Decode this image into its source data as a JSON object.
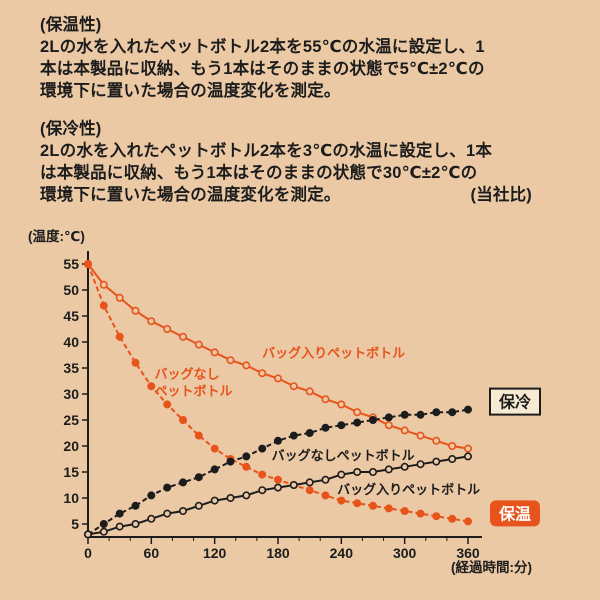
{
  "page": {
    "bg": "#ebc9a5",
    "accent": "#e8531b",
    "ink": "#1c1c1c",
    "box_fill": "#f7ead2"
  },
  "descriptions": {
    "hot": {
      "title": "(保温性)",
      "line1": "2Lの水を入れたペットボトル2本を55℃の水温に設定し、1",
      "line2": "本は本製品に収納、もう1本はそのままの状態で5℃±2℃の",
      "line3": "環境下に置いた場合の温度変化を測定。"
    },
    "cold": {
      "title": "(保冷性)",
      "line1": "2Lの水を入れたペットボトル2本を3℃の水温に設定し、1本",
      "line2": "は本製品に収納、もう1本はそのままの状態で30℃±2℃の",
      "line3": "環境下に置いた場合の温度変化を測定。",
      "note": "(当社比)"
    }
  },
  "chart_data": {
    "type": "line",
    "title": "",
    "ylabel": "(温度:℃)",
    "xlabel": "(経過時間:分)",
    "xlim": [
      0,
      372
    ],
    "ylim": [
      2.5,
      57
    ],
    "x_ticks": [
      0,
      60,
      120,
      180,
      240,
      300,
      360
    ],
    "x_minor_step": 20,
    "y_ticks": [
      5,
      10,
      15,
      20,
      25,
      30,
      35,
      40,
      45,
      50,
      55
    ],
    "x_step_minutes": 15,
    "grid": false,
    "legend": "inline-annotations",
    "series": [
      {
        "name": "保温・バッグ入りペットボトル",
        "color": "#e8531b",
        "dashed": false,
        "marker": "open",
        "values": [
          55,
          51,
          48.5,
          46,
          44,
          42.5,
          41,
          39.5,
          38,
          36.5,
          35.5,
          34,
          33,
          31.5,
          30.5,
          29,
          28,
          26.5,
          25.5,
          24,
          23,
          22,
          21,
          20,
          19.5
        ],
        "label_lines": [
          "バッグ入りペットボトル"
        ],
        "label_anchor": {
          "x": 165,
          "y": 37
        }
      },
      {
        "name": "保温・バッグなしペットボトル",
        "color": "#e8531b",
        "dashed": true,
        "marker": "filled",
        "values": [
          55,
          47,
          41,
          36,
          31.5,
          28,
          25,
          22,
          19.5,
          17.5,
          16,
          14.5,
          13.5,
          12.5,
          11.5,
          10.5,
          9.5,
          9,
          8.5,
          8,
          7.5,
          7,
          6.5,
          6,
          5.5
        ],
        "label_lines": [
          "バッグなし",
          "ペットボトル"
        ],
        "label_anchor": {
          "x": 63,
          "y": 33
        }
      },
      {
        "name": "保冷・バッグなしペットボトル",
        "color": "#1c1c1c",
        "dashed": true,
        "marker": "filled",
        "values": [
          3,
          5,
          7,
          8.5,
          10.5,
          12,
          13,
          14,
          15.5,
          17,
          18,
          19.5,
          21,
          22,
          22.5,
          23.5,
          24,
          24.5,
          25,
          25.5,
          26,
          26,
          26.5,
          26.5,
          27
        ],
        "label_lines": [
          "バッグなしペットボトル"
        ],
        "label_anchor": {
          "x": 174,
          "y": 17.3
        }
      },
      {
        "name": "保冷・バッグ入りペットボトル",
        "color": "#1c1c1c",
        "dashed": false,
        "marker": "open",
        "values": [
          3,
          3.5,
          4.5,
          5,
          6,
          7,
          7.5,
          8.5,
          9.5,
          10,
          10.5,
          11.5,
          12,
          12.5,
          13,
          13.5,
          14.5,
          15,
          15,
          15.5,
          16,
          16.5,
          17,
          17.5,
          18
        ],
        "label_lines": [
          "バッグ入りペットボトル"
        ],
        "label_anchor": {
          "x": 236,
          "y": 10.8
        }
      }
    ],
    "end_labels": [
      {
        "text": "保冷",
        "series": 2,
        "style": "outline"
      },
      {
        "text": "保温",
        "series": 1,
        "style": "solid"
      }
    ]
  }
}
